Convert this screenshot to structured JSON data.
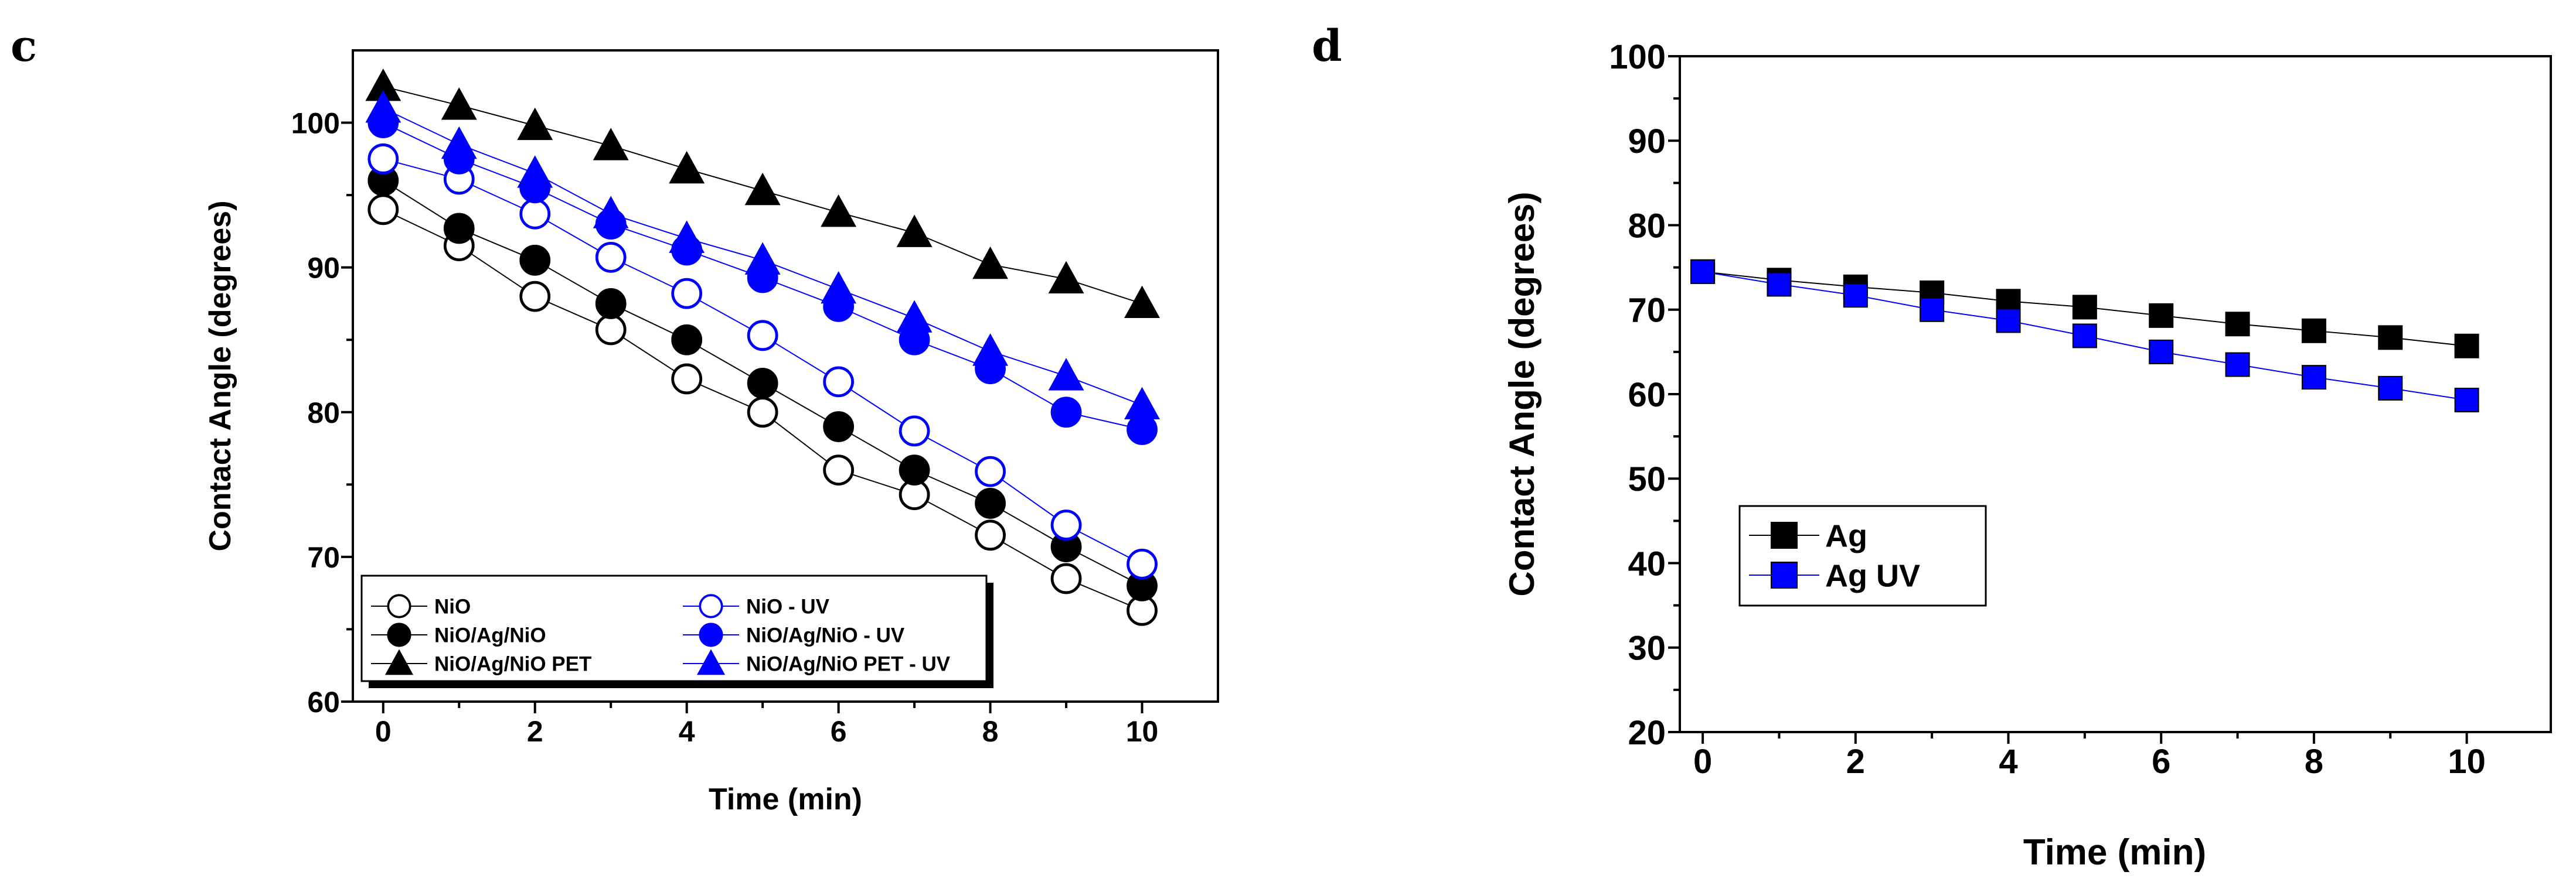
{
  "chart_data": [
    {
      "panel": "c",
      "type": "line",
      "xlabel": "Time (min)",
      "ylabel": "Contact Angle (degrees)",
      "xlim": [
        -0.4,
        11
      ],
      "ylim": [
        60,
        105
      ],
      "xticks": [
        0,
        2,
        4,
        6,
        8,
        10
      ],
      "yticks": [
        60,
        70,
        80,
        90,
        100
      ],
      "legend_position": "bottom-left",
      "legend_columns": 2,
      "x": [
        0,
        1,
        2,
        3,
        4,
        5,
        6,
        7,
        8,
        9,
        10
      ],
      "series": [
        {
          "name": "NiO",
          "color": "#000000",
          "marker": "circle-open",
          "values": [
            94,
            91.5,
            88,
            85.7,
            82.3,
            80,
            76,
            74.3,
            71.5,
            68.5,
            66.3
          ]
        },
        {
          "name": "NiO/Ag/NiO",
          "color": "#000000",
          "marker": "circle-filled",
          "values": [
            96,
            92.7,
            90.5,
            87.5,
            85,
            82,
            79,
            76,
            73.7,
            70.7,
            68
          ]
        },
        {
          "name": "NiO/Ag/NiO PET",
          "color": "#000000",
          "marker": "triangle-filled",
          "values": [
            102.5,
            101.2,
            99.8,
            98.4,
            96.8,
            95.3,
            93.8,
            92.4,
            90.2,
            89.2,
            87.5
          ]
        },
        {
          "name": "NiO - UV",
          "color": "#0000ff",
          "marker": "circle-open",
          "values": [
            97.5,
            96.1,
            93.7,
            90.7,
            88.2,
            85.3,
            82.1,
            78.7,
            75.9,
            72.2,
            69.5
          ]
        },
        {
          "name": "NiO/Ag/NiO - UV",
          "color": "#0000ff",
          "marker": "circle-filled",
          "values": [
            100,
            97.5,
            95.5,
            93,
            91.2,
            89.3,
            87.3,
            85,
            83,
            80,
            78.8
          ]
        },
        {
          "name": "NiO/Ag/NiO PET - UV",
          "color": "#0000ff",
          "marker": "triangle-filled",
          "values": [
            101,
            98.5,
            96.5,
            93.7,
            92,
            90.5,
            88.5,
            86.5,
            84.2,
            82.5,
            80.5
          ]
        }
      ]
    },
    {
      "panel": "d",
      "type": "line",
      "xlabel": "Time (min)",
      "ylabel": "Contact Angle (degrees)",
      "xlim": [
        -0.3,
        11.1
      ],
      "ylim": [
        20,
        100
      ],
      "xticks": [
        0,
        2,
        4,
        6,
        8,
        10
      ],
      "yticks": [
        20,
        30,
        40,
        50,
        60,
        70,
        80,
        90,
        100
      ],
      "legend_position": "lower-left",
      "legend_columns": 1,
      "x": [
        0,
        1,
        2,
        3,
        4,
        5,
        6,
        7,
        8,
        9,
        10
      ],
      "series": [
        {
          "name": "Ag",
          "color": "#000000",
          "marker": "square-filled",
          "values": [
            74.5,
            73.5,
            72.7,
            72,
            71,
            70.3,
            69.3,
            68.3,
            67.5,
            66.7,
            65.7
          ]
        },
        {
          "name": "Ag UV",
          "color": "#0000ff",
          "marker": "square-filled",
          "values": [
            74.5,
            73,
            71.7,
            70,
            68.7,
            66.9,
            65,
            63.5,
            62,
            60.7,
            59.3
          ]
        }
      ]
    }
  ]
}
